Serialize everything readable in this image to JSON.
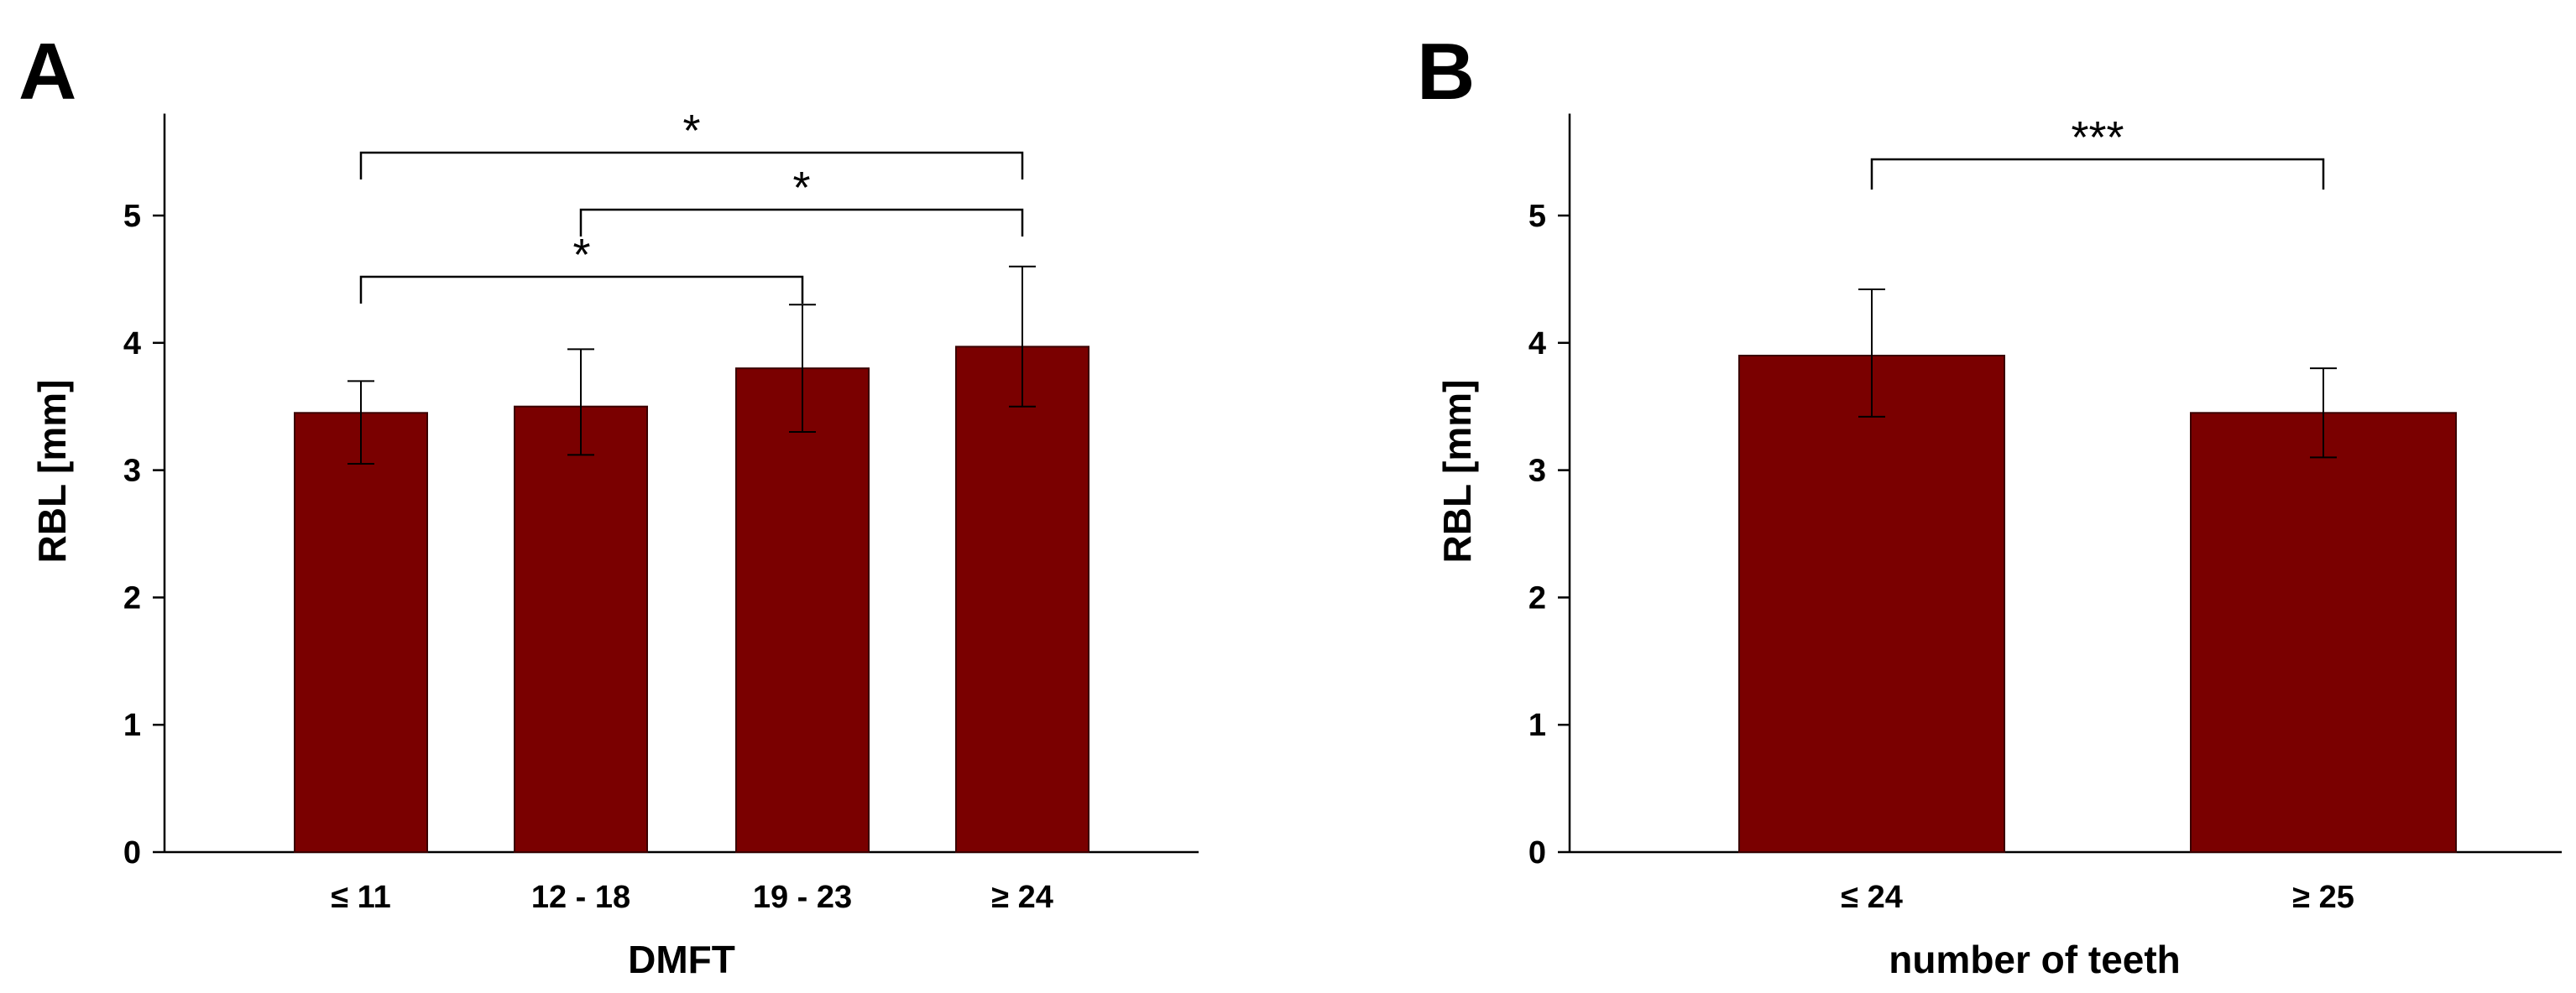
{
  "chart_data": [
    {
      "type": "bar",
      "panel_label": "A",
      "categories": [
        "≤ 11",
        "12 - 18",
        "19 - 23",
        "≥ 24"
      ],
      "values": [
        3.45,
        3.5,
        3.8,
        3.97
      ],
      "error_upper": [
        3.7,
        3.95,
        4.3,
        4.6
      ],
      "error_lower": [
        3.05,
        3.12,
        3.3,
        3.5
      ],
      "xlabel": "DMFT",
      "ylabel": "RBL [mm]",
      "ylim": [
        0,
        5.8
      ],
      "yticks": [
        "0",
        "1",
        "2",
        "3",
        "4",
        "5"
      ],
      "ytick_values": [
        0,
        1,
        2,
        3,
        4,
        5
      ],
      "bar_color": "#7a0000",
      "grid": false,
      "significance": [
        {
          "from": 0,
          "to": 3,
          "label": "*"
        },
        {
          "from": 1,
          "to": 3,
          "label": "*"
        },
        {
          "from": 0,
          "to": 2,
          "label": "*"
        }
      ]
    },
    {
      "type": "bar",
      "panel_label": "B",
      "categories": [
        "≤ 24",
        "≥ 25"
      ],
      "values": [
        3.9,
        3.45
      ],
      "error_upper": [
        4.42,
        3.8
      ],
      "error_lower": [
        3.42,
        3.1
      ],
      "xlabel": "number of teeth",
      "ylabel": "RBL [mm]",
      "ylim": [
        0,
        5.8
      ],
      "yticks": [
        "0",
        "1",
        "2",
        "3",
        "4",
        "5"
      ],
      "ytick_values": [
        0,
        1,
        2,
        3,
        4,
        5
      ],
      "bar_color": "#7a0000",
      "grid": false,
      "significance": [
        {
          "from": 0,
          "to": 1,
          "label": "***"
        }
      ]
    }
  ]
}
